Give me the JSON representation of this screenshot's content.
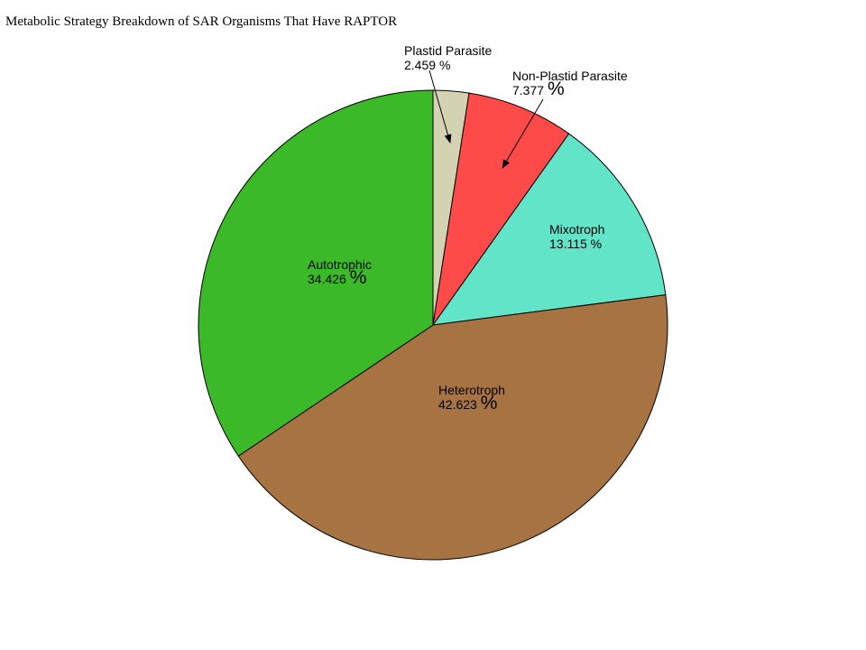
{
  "chart_data": {
    "type": "pie",
    "title": "Metabolic Strategy Breakdown of SAR Organisms That Have RAPTOR",
    "unit_suffix": "%",
    "start_angle": "12 o'clock",
    "direction": "clockwise",
    "slices": [
      {
        "label": "Plastid Parasite",
        "value": 2.459,
        "display": "2.459",
        "color": "#d3d3b4"
      },
      {
        "label": "Non-Plastid Parasite",
        "value": 7.377,
        "display": "7.377",
        "color": "#ff4a4a"
      },
      {
        "label": "Mixotroph",
        "value": 13.115,
        "display": "13.115",
        "color": "#61e4c8"
      },
      {
        "label": "Heterotroph",
        "value": 42.623,
        "display": "42.623",
        "color": "#a87342"
      },
      {
        "label": "Autotrophic",
        "value": 34.426,
        "display": "34.426",
        "color": "#3cb929"
      }
    ]
  }
}
